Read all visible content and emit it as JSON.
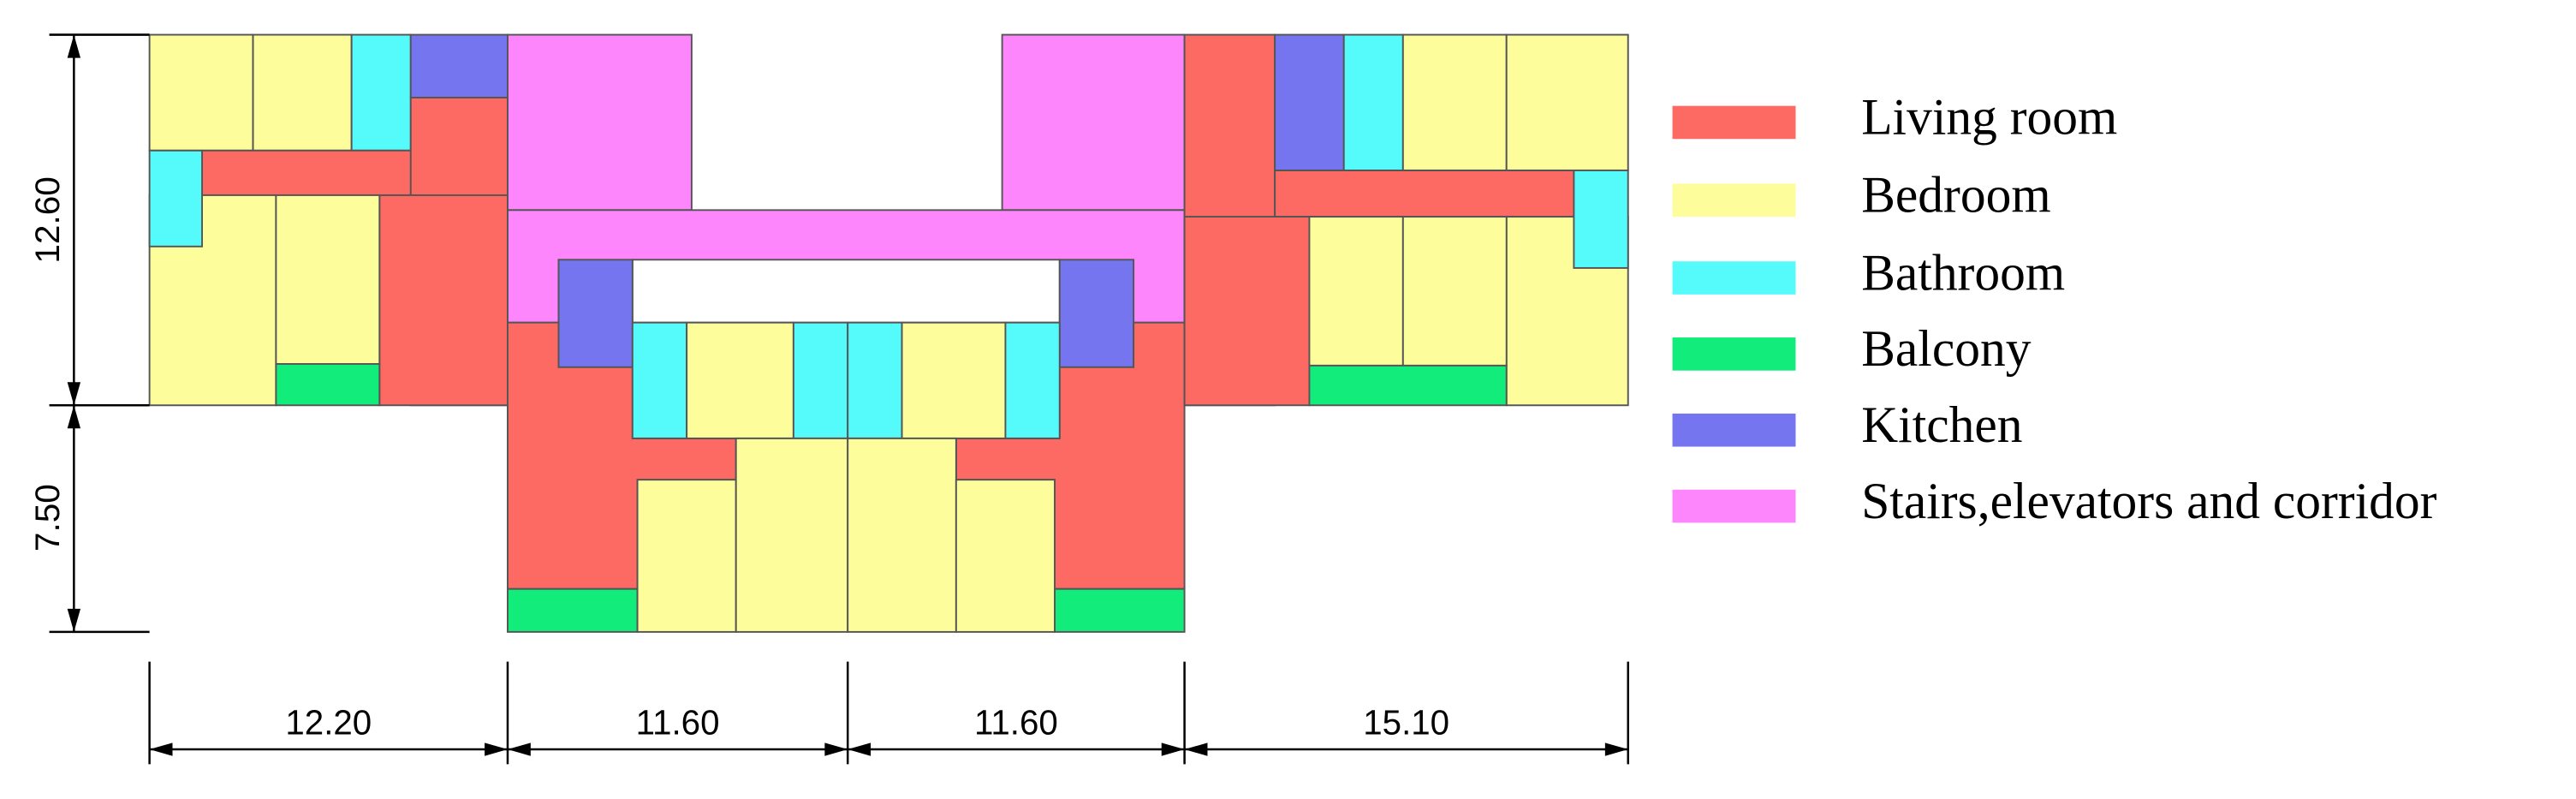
{
  "dimensions": {
    "vertical": [
      "12.60",
      "7.50"
    ],
    "horizontal": [
      "12.20",
      "11.60",
      "11.60",
      "15.10"
    ]
  },
  "legend": [
    {
      "label": "Living room",
      "color": "#fd6a63"
    },
    {
      "label": "Bedroom",
      "color": "#fdfd9c"
    },
    {
      "label": "Bathroom",
      "color": "#55fbfb"
    },
    {
      "label": "Balcony",
      "color": "#12ec7a"
    },
    {
      "label": "Kitchen",
      "color": "#7575f0"
    },
    {
      "label": "Stairs,elevators and corridor",
      "color": "#fd86fd"
    }
  ]
}
